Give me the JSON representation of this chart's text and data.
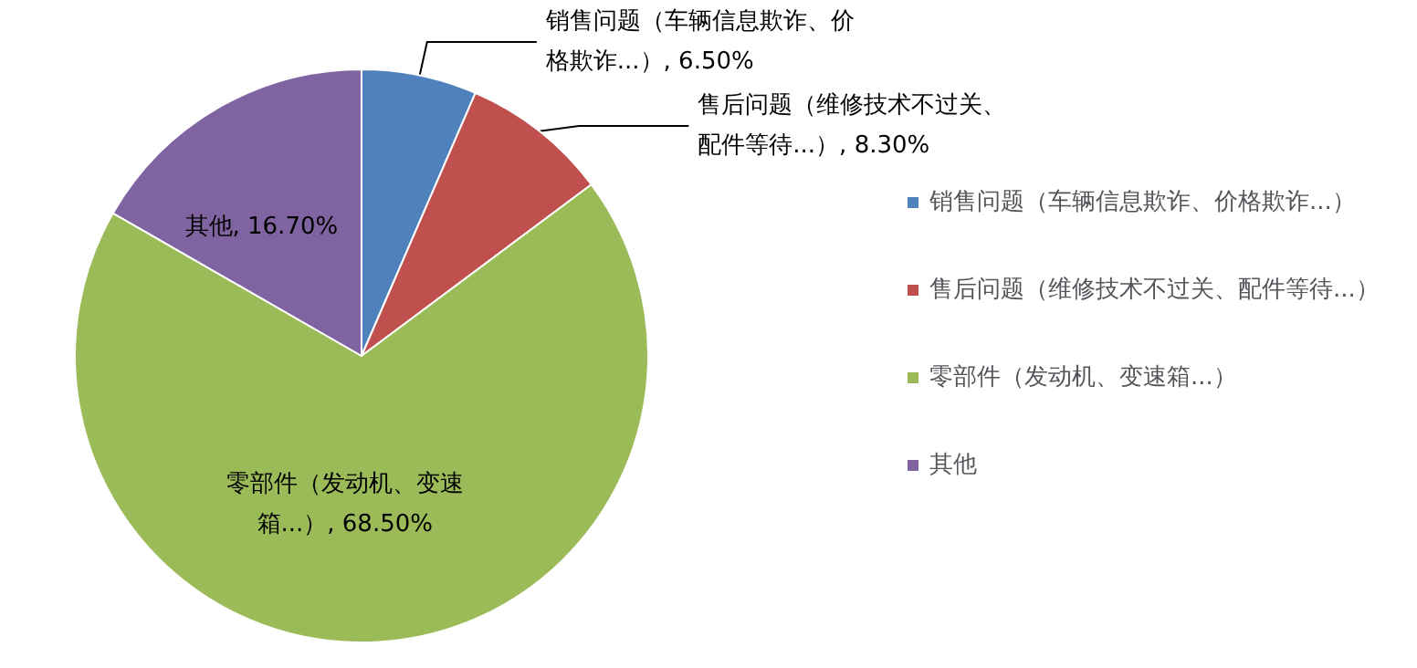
{
  "chart_data": {
    "type": "pie",
    "categories": [
      "销售问题（车辆信息欺诈、价格欺诈...）",
      "售后问题（维修技术不过关、配件等待...）",
      "零部件（发动机、变速箱...）",
      "其他"
    ],
    "values": [
      6.5,
      8.3,
      68.5,
      16.7
    ],
    "value_labels": [
      "销售问题（车辆信息欺诈、价格欺诈...）, 6.50%",
      "售后问题（维修技术不过关、配件等待...）, 8.30%",
      "零部件（发动机、变速箱...）, 68.50%",
      "其他, 16.70%"
    ],
    "colors": [
      "#4f81bd",
      "#c0504d",
      "#9bbb59",
      "#8064a2"
    ],
    "legend": "right"
  }
}
